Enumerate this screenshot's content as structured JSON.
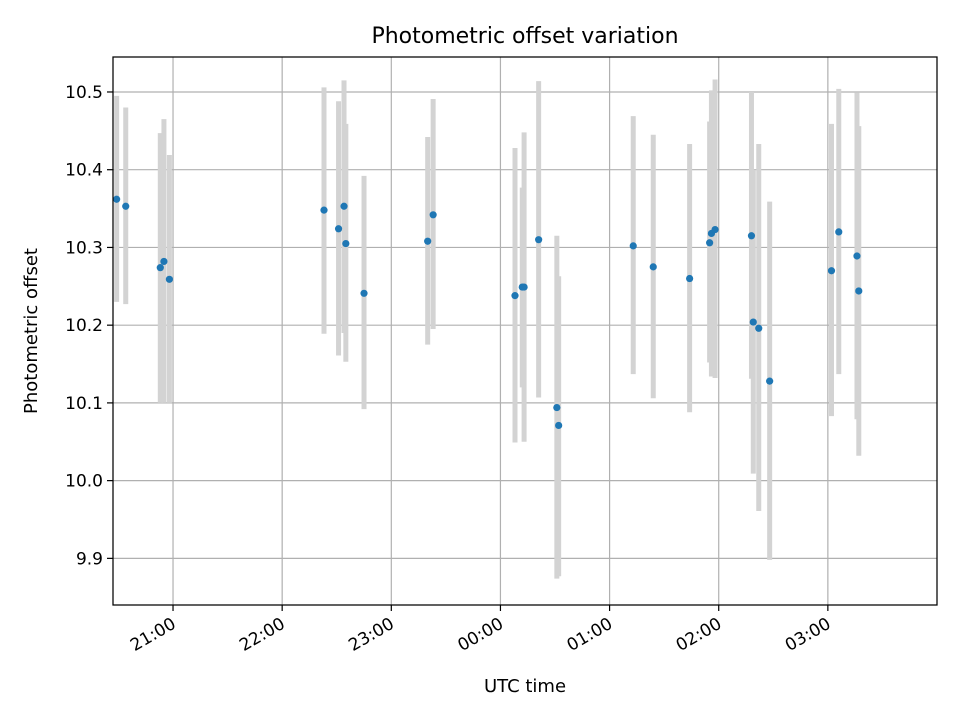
{
  "chart_data": {
    "type": "scatter",
    "title": "Photometric offset variation",
    "xlabel": "UTC time",
    "ylabel": "Photometric offset",
    "x_axis": {
      "kind": "time",
      "range": [
        "20:27",
        "04:00"
      ],
      "ticks": [
        "21:00",
        "22:00",
        "23:00",
        "00:00",
        "01:00",
        "02:00",
        "03:00"
      ]
    },
    "y_axis": {
      "range": [
        9.84,
        10.545
      ],
      "ticks": [
        "9.9",
        "10.0",
        "10.1",
        "10.2",
        "10.3",
        "10.4",
        "10.5"
      ]
    },
    "grid": true,
    "colors": {
      "points": "#1f77b4",
      "errorbars": "#d3d3d3",
      "grid": "#b0b0b0"
    },
    "series": [
      {
        "points": [
          {
            "t": "20:29",
            "y": 10.362,
            "err_lo": 10.23,
            "err_hi": 10.495
          },
          {
            "t": "20:34",
            "y": 10.353,
            "err_lo": 10.227,
            "err_hi": 10.48
          },
          {
            "t": "20:53",
            "y": 10.274,
            "err_lo": 10.1,
            "err_hi": 10.447
          },
          {
            "t": "20:55",
            "y": 10.282,
            "err_lo": 10.1,
            "err_hi": 10.465
          },
          {
            "t": "20:58",
            "y": 10.259,
            "err_lo": 10.1,
            "err_hi": 10.419
          },
          {
            "t": "22:23",
            "y": 10.348,
            "err_lo": 10.189,
            "err_hi": 10.506
          },
          {
            "t": "22:31",
            "y": 10.324,
            "err_lo": 10.161,
            "err_hi": 10.488
          },
          {
            "t": "22:34",
            "y": 10.353,
            "err_lo": 10.19,
            "err_hi": 10.515
          },
          {
            "t": "22:35",
            "y": 10.305,
            "err_lo": 10.153,
            "err_hi": 10.459
          },
          {
            "t": "22:45",
            "y": 10.241,
            "err_lo": 10.092,
            "err_hi": 10.392
          },
          {
            "t": "23:20",
            "y": 10.308,
            "err_lo": 10.175,
            "err_hi": 10.442
          },
          {
            "t": "23:23",
            "y": 10.342,
            "err_lo": 10.195,
            "err_hi": 10.491
          },
          {
            "t": "00:08",
            "y": 10.238,
            "err_lo": 10.049,
            "err_hi": 10.428
          },
          {
            "t": "00:12",
            "y": 10.249,
            "err_lo": 10.12,
            "err_hi": 10.377
          },
          {
            "t": "00:13",
            "y": 10.249,
            "err_lo": 10.05,
            "err_hi": 10.448
          },
          {
            "t": "00:21",
            "y": 10.31,
            "err_lo": 10.107,
            "err_hi": 10.514
          },
          {
            "t": "00:31",
            "y": 10.094,
            "err_lo": 9.874,
            "err_hi": 10.315
          },
          {
            "t": "00:32",
            "y": 10.071,
            "err_lo": 9.877,
            "err_hi": 10.263
          },
          {
            "t": "01:13",
            "y": 10.302,
            "err_lo": 10.137,
            "err_hi": 10.469
          },
          {
            "t": "01:24",
            "y": 10.275,
            "err_lo": 10.106,
            "err_hi": 10.445
          },
          {
            "t": "01:44",
            "y": 10.26,
            "err_lo": 10.088,
            "err_hi": 10.433
          },
          {
            "t": "01:55",
            "y": 10.306,
            "err_lo": 10.152,
            "err_hi": 10.462
          },
          {
            "t": "01:56",
            "y": 10.318,
            "err_lo": 10.134,
            "err_hi": 10.502
          },
          {
            "t": "01:58",
            "y": 10.323,
            "err_lo": 10.132,
            "err_hi": 10.516
          },
          {
            "t": "02:18",
            "y": 10.315,
            "err_lo": 10.131,
            "err_hi": 10.5
          },
          {
            "t": "02:19",
            "y": 10.204,
            "err_lo": 10.009,
            "err_hi": 10.4
          },
          {
            "t": "02:22",
            "y": 10.196,
            "err_lo": 9.961,
            "err_hi": 10.433
          },
          {
            "t": "02:28",
            "y": 10.128,
            "err_lo": 9.898,
            "err_hi": 10.359
          },
          {
            "t": "03:02",
            "y": 10.27,
            "err_lo": 10.083,
            "err_hi": 10.459
          },
          {
            "t": "03:06",
            "y": 10.32,
            "err_lo": 10.137,
            "err_hi": 10.504
          },
          {
            "t": "03:16",
            "y": 10.289,
            "err_lo": 10.079,
            "err_hi": 10.499
          },
          {
            "t": "03:17",
            "y": 10.244,
            "err_lo": 10.032,
            "err_hi": 10.456
          }
        ]
      }
    ]
  }
}
